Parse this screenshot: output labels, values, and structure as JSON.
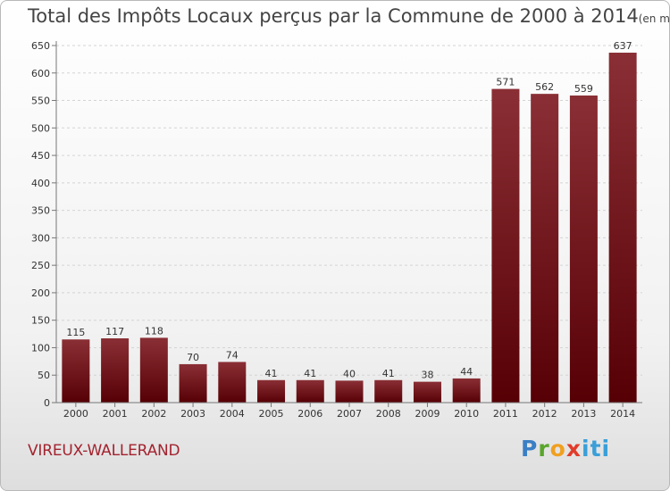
{
  "title": "Total des Impôts Locaux perçus par la Commune de 2000 à 2014",
  "title_unit": "(en milliers d'€)",
  "commune": "VIREUX-WALLERAND",
  "logo": "Proxiti",
  "colors": {
    "bar_top": "#8a2f35",
    "bar_bottom": "#560005",
    "commune": "#a3232f",
    "grid": "#d4d4d4"
  },
  "chart_data": {
    "type": "bar",
    "categories": [
      "2000",
      "2001",
      "2002",
      "2003",
      "2004",
      "2005",
      "2006",
      "2007",
      "2008",
      "2009",
      "2010",
      "2011",
      "2012",
      "2013",
      "2014"
    ],
    "values": [
      115,
      117,
      118,
      70,
      74,
      41,
      41,
      40,
      41,
      38,
      44,
      571,
      562,
      559,
      637
    ],
    "ylim": [
      0,
      650
    ],
    "yticks": [
      0,
      50,
      100,
      150,
      200,
      250,
      300,
      350,
      400,
      450,
      500,
      550,
      600,
      650
    ],
    "grid": true,
    "data_labels": true
  }
}
